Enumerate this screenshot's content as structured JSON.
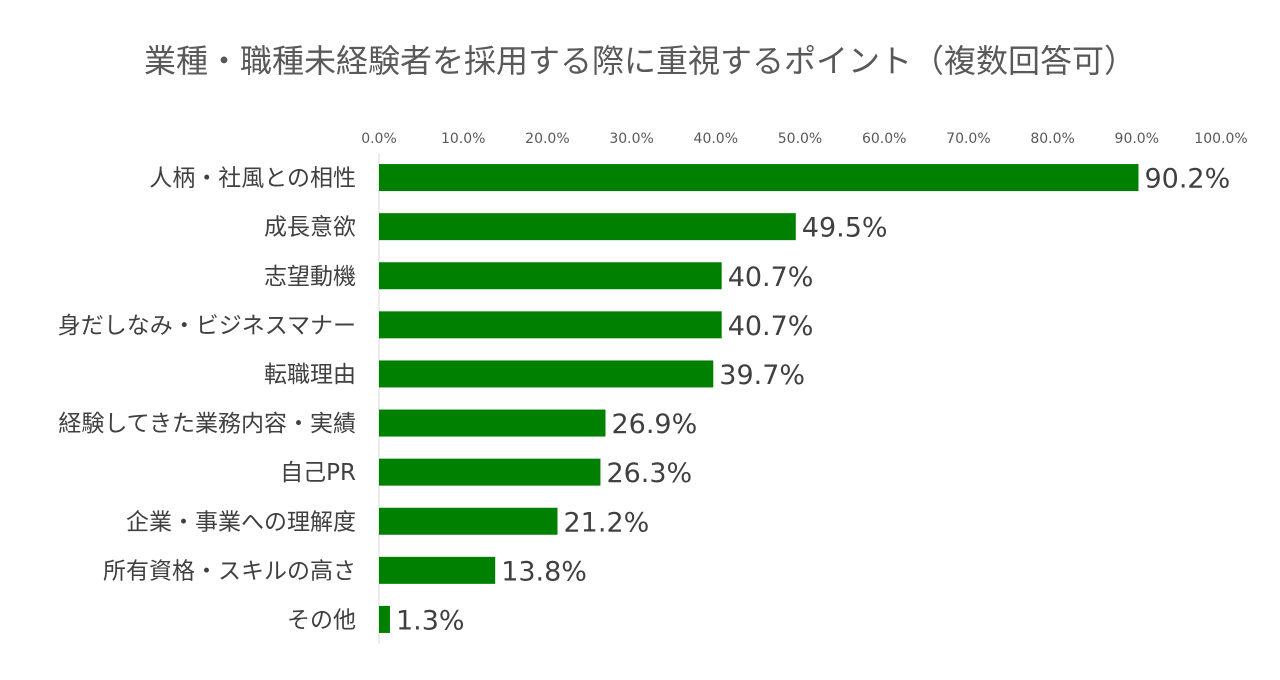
{
  "chart_data": {
    "type": "bar",
    "orientation": "horizontal",
    "title": "業種・職種未経験者を採用する際に重視するポイント（複数回答可）",
    "categories": [
      "人柄・社風との相性",
      "成長意欲",
      "志望動機",
      "身だしなみ・ビジネスマナー",
      "転職理由",
      "経験してきた業務内容・実績",
      "自己PR",
      "企業・事業への理解度",
      "所有資格・スキルの高さ",
      "その他"
    ],
    "values": [
      90.2,
      49.5,
      40.7,
      40.7,
      39.7,
      26.9,
      26.3,
      21.2,
      13.8,
      1.3
    ],
    "value_labels": [
      "90.2%",
      "49.5%",
      "40.7%",
      "40.7%",
      "39.7%",
      "26.9%",
      "26.3%",
      "21.2%",
      "13.8%",
      "1.3%"
    ],
    "xlim": [
      0,
      100
    ],
    "ticks": [
      0,
      10,
      20,
      30,
      40,
      50,
      60,
      70,
      80,
      90,
      100
    ],
    "tick_labels": [
      "0.0%",
      "10.0%",
      "20.0%",
      "30.0%",
      "40.0%",
      "50.0%",
      "60.0%",
      "70.0%",
      "80.0%",
      "90.0%",
      "100.0%"
    ],
    "axis_position": "top",
    "grid": false,
    "legend": "none",
    "bar_color": "#008000"
  }
}
